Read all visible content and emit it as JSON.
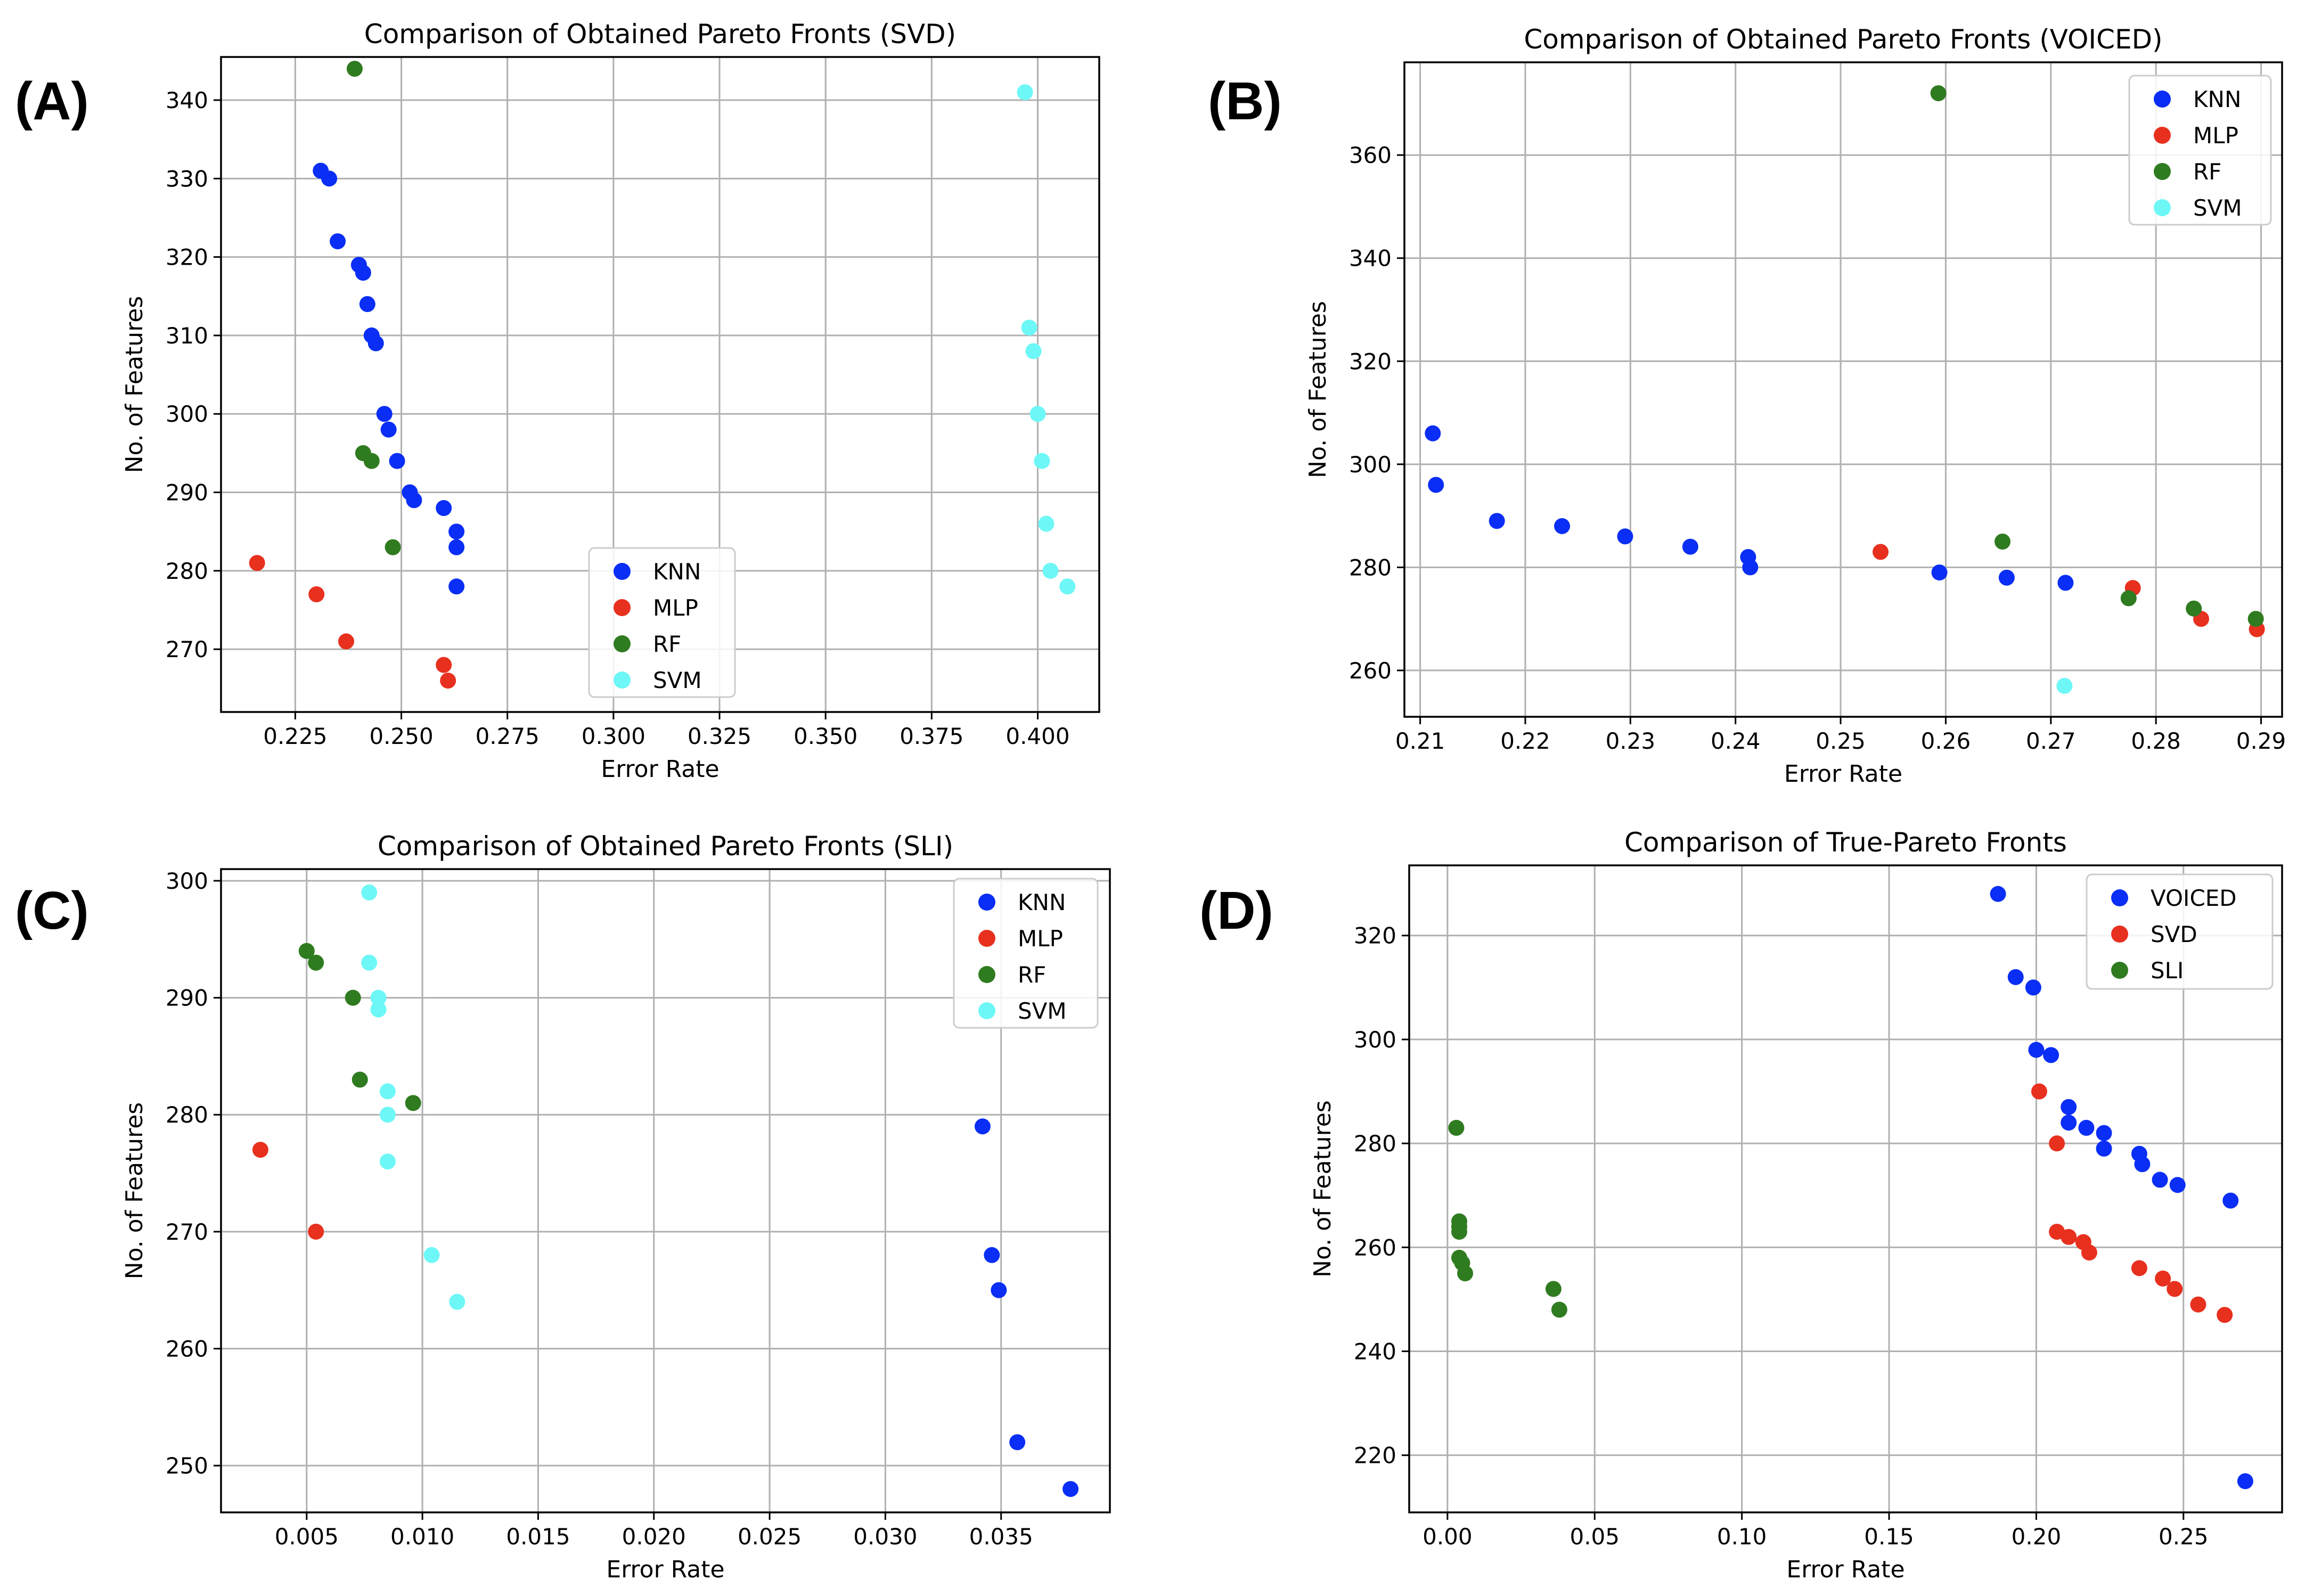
{
  "chart_data": [
    {
      "panel": "(A)",
      "type": "scatter",
      "title": "Comparison of Obtained Pareto Fronts (SVD)",
      "xlabel": "Error Rate",
      "ylabel": "No. of Features",
      "xlim": [
        0.2075,
        0.4145
      ],
      "ylim": [
        262,
        345.5
      ],
      "xticks": [
        0.225,
        0.25,
        0.275,
        0.3,
        0.325,
        0.35,
        0.375,
        0.4
      ],
      "xtick_labels": [
        "0.225",
        "0.250",
        "0.275",
        "0.300",
        "0.325",
        "0.350",
        "0.375",
        "0.400"
      ],
      "yticks": [
        270,
        280,
        290,
        300,
        310,
        320,
        330,
        340
      ],
      "ytick_labels": [
        "270",
        "280",
        "290",
        "300",
        "310",
        "320",
        "330",
        "340"
      ],
      "grid": true,
      "legend_position": "lower-center",
      "series": [
        {
          "name": "KNN",
          "color": "#0a2ef5",
          "points": [
            [
              0.231,
              331
            ],
            [
              0.233,
              330
            ],
            [
              0.235,
              322
            ],
            [
              0.24,
              319
            ],
            [
              0.241,
              318
            ],
            [
              0.242,
              314
            ],
            [
              0.243,
              310
            ],
            [
              0.244,
              309
            ],
            [
              0.246,
              300
            ],
            [
              0.247,
              298
            ],
            [
              0.249,
              294
            ],
            [
              0.252,
              290
            ],
            [
              0.253,
              289
            ],
            [
              0.26,
              288
            ],
            [
              0.263,
              285
            ],
            [
              0.263,
              283
            ],
            [
              0.263,
              278
            ]
          ]
        },
        {
          "name": "MLP",
          "color": "#e8301f",
          "points": [
            [
              0.216,
              281
            ],
            [
              0.23,
              277
            ],
            [
              0.237,
              271
            ],
            [
              0.26,
              268
            ],
            [
              0.261,
              266
            ]
          ]
        },
        {
          "name": "RF",
          "color": "#2f7b20",
          "points": [
            [
              0.239,
              344
            ],
            [
              0.241,
              295
            ],
            [
              0.243,
              294
            ],
            [
              0.248,
              283
            ]
          ]
        },
        {
          "name": "SVM",
          "color": "#6ef7f7",
          "points": [
            [
              0.397,
              341
            ],
            [
              0.398,
              311
            ],
            [
              0.399,
              308
            ],
            [
              0.4,
              300
            ],
            [
              0.401,
              294
            ],
            [
              0.402,
              286
            ],
            [
              0.403,
              280
            ],
            [
              0.407,
              278
            ]
          ]
        }
      ]
    },
    {
      "panel": "(B)",
      "type": "scatter",
      "title": "Comparison of Obtained Pareto Fronts (VOICED)",
      "xlabel": "Error Rate",
      "ylabel": "No. of Features",
      "xlim": [
        0.2085,
        0.292
      ],
      "ylim": [
        251,
        378
      ],
      "xticks": [
        0.21,
        0.22,
        0.23,
        0.24,
        0.25,
        0.26,
        0.27,
        0.28,
        0.29
      ],
      "xtick_labels": [
        "0.21",
        "0.22",
        "0.23",
        "0.24",
        "0.25",
        "0.26",
        "0.27",
        "0.28",
        "0.29"
      ],
      "yticks": [
        260,
        280,
        300,
        320,
        340,
        360
      ],
      "ytick_labels": [
        "260",
        "280",
        "300",
        "320",
        "340",
        "360"
      ],
      "grid": true,
      "legend_position": "upper-right",
      "series": [
        {
          "name": "KNN",
          "color": "#0a2ef5",
          "points": [
            [
              0.2112,
              306
            ],
            [
              0.2115,
              296
            ],
            [
              0.2173,
              289
            ],
            [
              0.2235,
              288
            ],
            [
              0.2295,
              286
            ],
            [
              0.2357,
              284
            ],
            [
              0.2412,
              282
            ],
            [
              0.2414,
              280
            ],
            [
              0.2594,
              279
            ],
            [
              0.2658,
              278
            ],
            [
              0.2714,
              277
            ]
          ]
        },
        {
          "name": "MLP",
          "color": "#e8301f",
          "points": [
            [
              0.2538,
              283
            ],
            [
              0.2778,
              276
            ],
            [
              0.2843,
              270
            ],
            [
              0.2896,
              268
            ]
          ]
        },
        {
          "name": "RF",
          "color": "#2f7b20",
          "points": [
            [
              0.2593,
              372
            ],
            [
              0.2654,
              285
            ],
            [
              0.2774,
              274
            ],
            [
              0.2836,
              272
            ],
            [
              0.2895,
              270
            ]
          ]
        },
        {
          "name": "SVM",
          "color": "#6ef7f7",
          "points": [
            [
              0.2713,
              257
            ]
          ]
        }
      ]
    },
    {
      "panel": "(C)",
      "type": "scatter",
      "title": "Comparison of Obtained Pareto Fronts (SLI)",
      "xlabel": "Error Rate",
      "ylabel": "No. of Features",
      "xlim": [
        0.0013,
        0.0397
      ],
      "ylim": [
        246,
        301
      ],
      "xticks": [
        0.005,
        0.01,
        0.015,
        0.02,
        0.025,
        0.03,
        0.035
      ],
      "xtick_labels": [
        "0.005",
        "0.010",
        "0.015",
        "0.020",
        "0.025",
        "0.030",
        "0.035"
      ],
      "yticks": [
        250,
        260,
        270,
        280,
        290,
        300
      ],
      "ytick_labels": [
        "250",
        "260",
        "270",
        "280",
        "290",
        "300"
      ],
      "grid": true,
      "legend_position": "upper-right",
      "series": [
        {
          "name": "KNN",
          "color": "#0a2ef5",
          "points": [
            [
              0.0342,
              279
            ],
            [
              0.0346,
              268
            ],
            [
              0.0349,
              265
            ],
            [
              0.0357,
              252
            ],
            [
              0.038,
              248
            ]
          ]
        },
        {
          "name": "MLP",
          "color": "#e8301f",
          "points": [
            [
              0.003,
              277
            ],
            [
              0.0054,
              270
            ]
          ]
        },
        {
          "name": "RF",
          "color": "#2f7b20",
          "points": [
            [
              0.005,
              294
            ],
            [
              0.0054,
              293
            ],
            [
              0.007,
              290
            ],
            [
              0.0073,
              283
            ],
            [
              0.0096,
              281
            ]
          ]
        },
        {
          "name": "SVM",
          "color": "#6ef7f7",
          "points": [
            [
              0.0077,
              299
            ],
            [
              0.0077,
              293
            ],
            [
              0.0081,
              290
            ],
            [
              0.0081,
              289
            ],
            [
              0.0085,
              282
            ],
            [
              0.0085,
              280
            ],
            [
              0.0085,
              276
            ],
            [
              0.0104,
              268
            ],
            [
              0.0115,
              264
            ]
          ]
        }
      ]
    },
    {
      "panel": "(D)",
      "type": "scatter",
      "title": "Comparison of True-Pareto Fronts",
      "xlabel": "Error Rate",
      "ylabel": "No. of Features",
      "xlim": [
        -0.013,
        0.2835
      ],
      "ylim": [
        209,
        333.5
      ],
      "xticks": [
        0.0,
        0.05,
        0.1,
        0.15,
        0.2,
        0.25
      ],
      "xtick_labels": [
        "0.00",
        "0.05",
        "0.10",
        "0.15",
        "0.20",
        "0.25"
      ],
      "yticks": [
        220,
        240,
        260,
        280,
        300,
        320
      ],
      "ytick_labels": [
        "220",
        "240",
        "260",
        "280",
        "300",
        "320"
      ],
      "grid": true,
      "legend_position": "upper-right",
      "series": [
        {
          "name": "VOICED",
          "color": "#0a2ef5",
          "points": [
            [
              0.187,
              328
            ],
            [
              0.193,
              312
            ],
            [
              0.199,
              310
            ],
            [
              0.2,
              298
            ],
            [
              0.205,
              297
            ],
            [
              0.211,
              287
            ],
            [
              0.211,
              284
            ],
            [
              0.217,
              283
            ],
            [
              0.223,
              282
            ],
            [
              0.223,
              279
            ],
            [
              0.235,
              278
            ],
            [
              0.236,
              276
            ],
            [
              0.242,
              273
            ],
            [
              0.248,
              272
            ],
            [
              0.266,
              269
            ],
            [
              0.271,
              215
            ]
          ]
        },
        {
          "name": "SVD",
          "color": "#e8301f",
          "points": [
            [
              0.201,
              290
            ],
            [
              0.207,
              280
            ],
            [
              0.207,
              263
            ],
            [
              0.211,
              262
            ],
            [
              0.216,
              261
            ],
            [
              0.218,
              259
            ],
            [
              0.235,
              256
            ],
            [
              0.243,
              254
            ],
            [
              0.247,
              252
            ],
            [
              0.255,
              249
            ],
            [
              0.264,
              247
            ]
          ]
        },
        {
          "name": "SLI",
          "color": "#2f7b20",
          "points": [
            [
              0.003,
              283
            ],
            [
              0.004,
              265
            ],
            [
              0.004,
              264
            ],
            [
              0.004,
              263
            ],
            [
              0.004,
              258
            ],
            [
              0.005,
              257
            ],
            [
              0.006,
              255
            ],
            [
              0.036,
              252
            ],
            [
              0.038,
              248
            ]
          ]
        }
      ]
    }
  ]
}
